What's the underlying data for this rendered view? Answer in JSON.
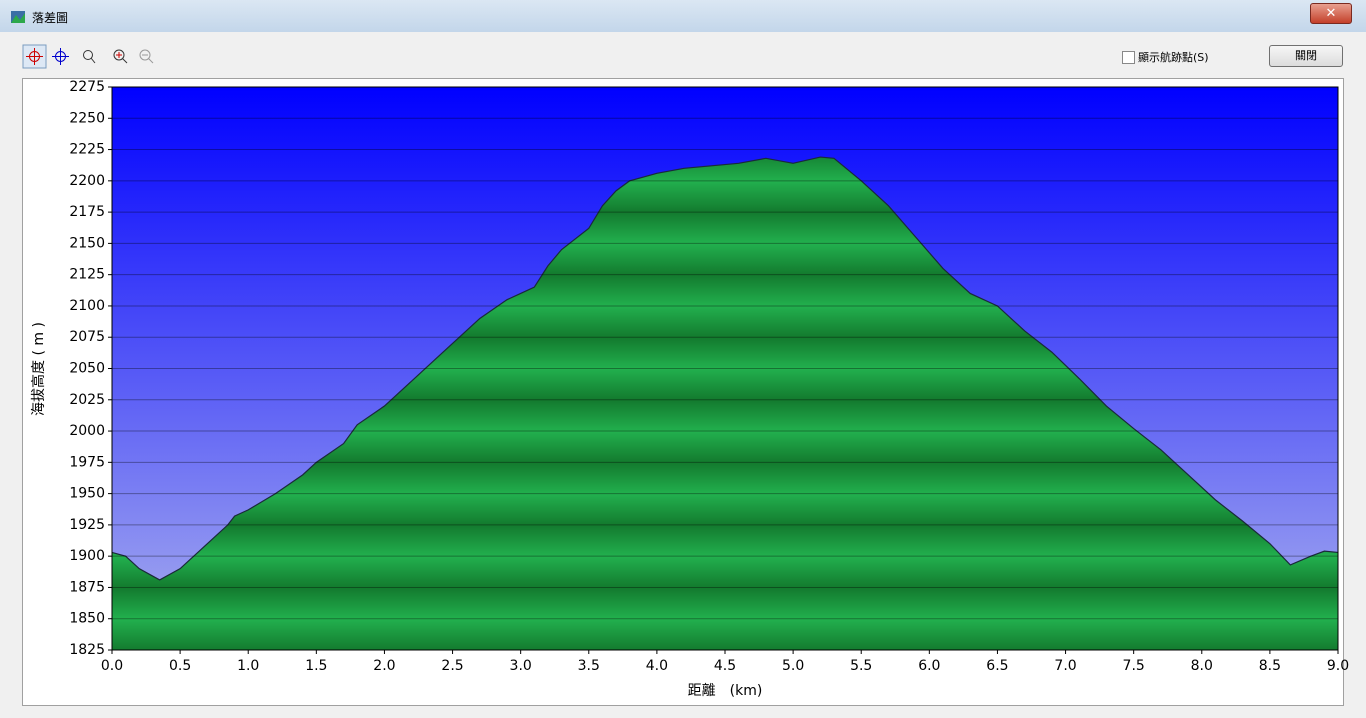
{
  "window": {
    "title": "落差圖",
    "checkbox_label": "顯示航跡點(S)",
    "close_button": "關閉"
  },
  "chart_data": {
    "type": "area",
    "x_label": "距離　(km)",
    "y_label": "海拔高度 ( m )",
    "x": [
      0.0,
      0.1,
      0.2,
      0.3,
      0.35,
      0.5,
      0.7,
      0.85,
      0.9,
      1.0,
      1.2,
      1.4,
      1.5,
      1.7,
      1.8,
      2.0,
      2.2,
      2.4,
      2.6,
      2.7,
      2.9,
      3.0,
      3.1,
      3.2,
      3.3,
      3.5,
      3.6,
      3.7,
      3.8,
      4.0,
      4.2,
      4.4,
      4.6,
      4.8,
      5.0,
      5.2,
      5.3,
      5.5,
      5.7,
      5.9,
      6.1,
      6.3,
      6.5,
      6.7,
      6.9,
      7.1,
      7.3,
      7.5,
      7.7,
      7.9,
      8.1,
      8.3,
      8.5,
      8.65,
      8.8,
      8.9,
      9.0
    ],
    "values": [
      1903,
      1900,
      1890,
      1884,
      1881,
      1890,
      1910,
      1925,
      1932,
      1937,
      1950,
      1965,
      1975,
      1990,
      2005,
      2020,
      2040,
      2060,
      2080,
      2090,
      2105,
      2110,
      2115,
      2132,
      2145,
      2162,
      2180,
      2192,
      2200,
      2206,
      2210,
      2212,
      2214,
      2218,
      2214,
      2219,
      2218,
      2200,
      2180,
      2155,
      2130,
      2110,
      2100,
      2080,
      2063,
      2042,
      2020,
      2002,
      1985,
      1965,
      1945,
      1928,
      1910,
      1893,
      1900,
      1904,
      1903
    ],
    "color": "#1fa84a",
    "line_color": "#1a2a3a",
    "xlim": [
      0,
      9
    ],
    "xticks": [
      {
        "value": 0,
        "label": "0.0"
      },
      0.5,
      {
        "value": 1,
        "label": "1.0"
      },
      1.5,
      {
        "value": 2,
        "label": "2.0"
      },
      2.5,
      {
        "value": 3,
        "label": "3.0"
      },
      3.5,
      {
        "value": 4,
        "label": "4.0"
      },
      4.5,
      {
        "value": 5,
        "label": "5.0"
      },
      5.5,
      {
        "value": 6,
        "label": "6.0"
      },
      6.5,
      {
        "value": 7,
        "label": "7.0"
      },
      7.5,
      {
        "value": 8,
        "label": "8.0"
      },
      8.5,
      {
        "value": 9,
        "label": "9.0"
      }
    ],
    "ylim": [
      1825,
      2275
    ],
    "yticks": [
      1825,
      1850,
      1875,
      1900,
      1925,
      1950,
      1975,
      2000,
      2025,
      2050,
      2075,
      2100,
      2125,
      2150,
      2175,
      2200,
      2225,
      2250,
      2275
    ],
    "grid": true
  }
}
